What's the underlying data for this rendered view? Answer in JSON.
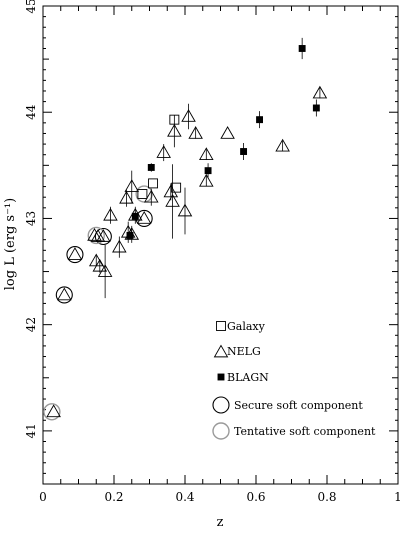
{
  "chart_data": {
    "type": "scatter",
    "title": "",
    "xlabel": "z",
    "ylabel": "log L (erg s⁻¹)",
    "xlim": [
      0,
      1
    ],
    "ylim": [
      40.5,
      45
    ],
    "x_ticks": [
      0,
      0.2,
      0.4,
      0.6,
      0.8,
      1
    ],
    "x_tick_labels": [
      "0",
      "0.2",
      "0.4",
      "0.6",
      "0.8",
      "1"
    ],
    "y_ticks": [
      41,
      42,
      43,
      44,
      45
    ],
    "y_tick_labels": [
      "41",
      "42",
      "43",
      "44",
      "45"
    ],
    "grid": false,
    "legend_position": "lower-right",
    "legend": [
      {
        "marker": "square",
        "label": "Galaxy"
      },
      {
        "marker": "triangle",
        "label": "NELG"
      },
      {
        "marker": "filled-square",
        "label": "BLAGN"
      },
      {
        "marker": "circle-black",
        "label": "Secure soft component"
      },
      {
        "marker": "circle-grey",
        "label": "Tentative soft component"
      }
    ],
    "colors": {
      "axis": "#000000",
      "secure_circle": "#000000",
      "tentative_circle": "#9a9a9a"
    },
    "series": [
      {
        "name": "Galaxy",
        "marker": "square",
        "points": [
          {
            "x": 0.37,
            "y": 43.93,
            "err": 0
          },
          {
            "x": 0.31,
            "y": 43.33,
            "err": 0
          },
          {
            "x": 0.375,
            "y": 43.29,
            "err": 0
          },
          {
            "x": 0.28,
            "y": 43.23,
            "err": 0
          }
        ]
      },
      {
        "name": "NELG",
        "marker": "triangle",
        "points": [
          {
            "x": 0.03,
            "y": 41.18,
            "err": 0
          },
          {
            "x": 0.06,
            "y": 42.28,
            "err": 0
          },
          {
            "x": 0.09,
            "y": 42.66,
            "err": 0
          },
          {
            "x": 0.145,
            "y": 42.84,
            "err": 0
          },
          {
            "x": 0.155,
            "y": 42.83,
            "err": 0
          },
          {
            "x": 0.17,
            "y": 42.83,
            "err": 0
          },
          {
            "x": 0.15,
            "y": 42.6,
            "err": 0.05
          },
          {
            "x": 0.16,
            "y": 42.55,
            "err": 0.06
          },
          {
            "x": 0.175,
            "y": 42.5,
            "err": 0.25
          },
          {
            "x": 0.19,
            "y": 43.03,
            "err": 0.08
          },
          {
            "x": 0.215,
            "y": 42.73,
            "err": 0.1
          },
          {
            "x": 0.235,
            "y": 43.19,
            "err": 0.08
          },
          {
            "x": 0.24,
            "y": 42.87,
            "err": 0.1
          },
          {
            "x": 0.25,
            "y": 43.3,
            "err": 0.15
          },
          {
            "x": 0.25,
            "y": 42.85,
            "err": 0.08
          },
          {
            "x": 0.26,
            "y": 43.03,
            "err": 0.08
          },
          {
            "x": 0.285,
            "y": 43.0,
            "err": 0
          },
          {
            "x": 0.305,
            "y": 43.2,
            "err": 0.08
          },
          {
            "x": 0.34,
            "y": 43.62,
            "err": 0.08
          },
          {
            "x": 0.36,
            "y": 43.25,
            "err": 0.08
          },
          {
            "x": 0.365,
            "y": 43.16,
            "err": 0.35
          },
          {
            "x": 0.37,
            "y": 43.82,
            "err": 0.15
          },
          {
            "x": 0.4,
            "y": 43.07,
            "err": 0.22
          },
          {
            "x": 0.41,
            "y": 43.96,
            "err": 0.12
          },
          {
            "x": 0.43,
            "y": 43.8,
            "err": 0.05
          },
          {
            "x": 0.46,
            "y": 43.6,
            "err": 0.05
          },
          {
            "x": 0.46,
            "y": 43.35,
            "err": 0.05
          },
          {
            "x": 0.52,
            "y": 43.8,
            "err": 0
          },
          {
            "x": 0.675,
            "y": 43.68,
            "err": 0.05
          },
          {
            "x": 0.78,
            "y": 44.18,
            "err": 0.05
          }
        ]
      },
      {
        "name": "BLAGN",
        "marker": "filled-square",
        "points": [
          {
            "x": 0.305,
            "y": 43.48,
            "err": 0.04
          },
          {
            "x": 0.465,
            "y": 43.45,
            "err": 0.07
          },
          {
            "x": 0.26,
            "y": 43.02,
            "err": 0.04
          },
          {
            "x": 0.245,
            "y": 42.84,
            "err": 0.04
          },
          {
            "x": 0.565,
            "y": 43.63,
            "err": 0.08
          },
          {
            "x": 0.61,
            "y": 43.93,
            "err": 0.08
          },
          {
            "x": 0.73,
            "y": 44.6,
            "err": 0.1
          },
          {
            "x": 0.77,
            "y": 44.04,
            "err": 0.08
          }
        ]
      }
    ],
    "soft_component_circles": [
      {
        "x": 0.06,
        "y": 42.28,
        "kind": "secure"
      },
      {
        "x": 0.09,
        "y": 42.66,
        "kind": "secure"
      },
      {
        "x": 0.17,
        "y": 42.83,
        "kind": "secure"
      },
      {
        "x": 0.285,
        "y": 43.0,
        "kind": "secure"
      },
      {
        "x": 0.025,
        "y": 41.18,
        "kind": "tentative"
      },
      {
        "x": 0.15,
        "y": 42.84,
        "kind": "tentative"
      },
      {
        "x": 0.285,
        "y": 43.23,
        "kind": "tentative"
      }
    ]
  }
}
